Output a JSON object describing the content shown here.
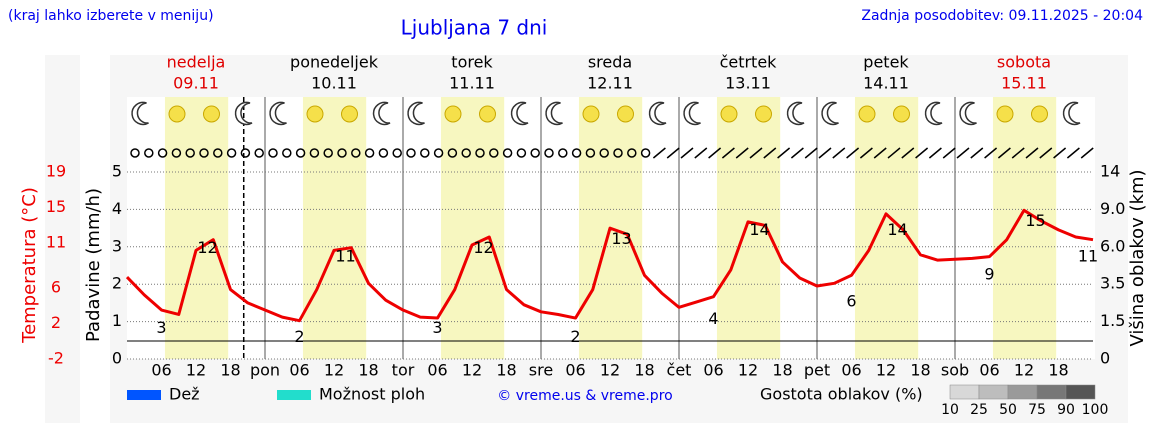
{
  "chart_data": {
    "type": "line",
    "title": "Ljubljana 7 dni",
    "subtitle": "(kraj lahko izberete v meniju)",
    "update": "Zadnja posodobitev: 09.11.2025 - 20:04",
    "days": [
      {
        "name": "nedelja",
        "date": "09.11",
        "color": "#e00000"
      },
      {
        "name": "ponedeljek",
        "date": "10.11",
        "color": "#000000"
      },
      {
        "name": "torek",
        "date": "11.11",
        "color": "#000000"
      },
      {
        "name": "sreda",
        "date": "12.11",
        "color": "#000000"
      },
      {
        "name": "četrtek",
        "date": "13.11",
        "color": "#000000"
      },
      {
        "name": "petek",
        "date": "14.11",
        "color": "#000000"
      },
      {
        "name": "sobota",
        "date": "15.11",
        "color": "#e00000"
      }
    ],
    "xlim": [
      0,
      168
    ],
    "xticks": [
      {
        "value": 6,
        "label": "06"
      },
      12,
      18,
      {
        "value": 24,
        "label": "pon"
      },
      {
        "value": 30,
        "label": "06"
      },
      {
        "value": 36,
        "label": "12"
      },
      {
        "value": 42,
        "label": "18"
      },
      {
        "value": 48,
        "label": "tor"
      },
      {
        "value": 54,
        "label": "06"
      },
      {
        "value": 60,
        "label": "12"
      },
      {
        "value": 66,
        "label": "18"
      },
      {
        "value": 72,
        "label": "sre"
      },
      {
        "value": 78,
        "label": "06"
      },
      {
        "value": 84,
        "label": "12"
      },
      {
        "value": 90,
        "label": "18"
      },
      {
        "value": 96,
        "label": "čet"
      },
      {
        "value": 102,
        "label": "06"
      },
      {
        "value": 108,
        "label": "12"
      },
      {
        "value": 114,
        "label": "18"
      },
      {
        "value": 120,
        "label": "pet"
      },
      {
        "value": 126,
        "label": "06"
      },
      {
        "value": 132,
        "label": "12"
      },
      {
        "value": 138,
        "label": "18"
      },
      {
        "value": 144,
        "label": "sob"
      },
      {
        "value": 150,
        "label": "06"
      },
      {
        "value": 156,
        "label": "12"
      },
      {
        "value": 162,
        "label": "18"
      }
    ],
    "ylabel": "Padavine (mm/h)",
    "ylim": [
      0,
      5
    ],
    "yticks": [
      0,
      1,
      2,
      3,
      4,
      5
    ],
    "grid": true,
    "temperature_axis": {
      "lim": [
        -2,
        19
      ],
      "ticks": [
        -2,
        2,
        6,
        11,
        15,
        19
      ],
      "color": "#ee0000"
    },
    "y2label": "Višina oblakov (km)",
    "y2ticks": [
      0,
      {
        "value": 1.5,
        "label": "1.5"
      },
      {
        "value": 3.5,
        "label": "3.5"
      },
      {
        "value": 6,
        "label": "6.0"
      },
      {
        "value": 9,
        "label": "9.0"
      },
      14
    ],
    "x": [
      0,
      3,
      6,
      9,
      12,
      15,
      18,
      21,
      24,
      27,
      30,
      33,
      36,
      39,
      42,
      45,
      48,
      51,
      54,
      57,
      60,
      63,
      66,
      69,
      72,
      75,
      78,
      81,
      84,
      87,
      90,
      93,
      96,
      99,
      102,
      105,
      108,
      111,
      114,
      117,
      120,
      123,
      126,
      129,
      132,
      135,
      138,
      141,
      144,
      147,
      150,
      153,
      156,
      159,
      162,
      165,
      168
    ],
    "series": [
      {
        "name": "Temperatura (°C)",
        "color": "#ee0000",
        "values": [
          7.2,
          5.2,
          3.5,
          3.0,
          10.2,
          11.4,
          5.8,
          4.3,
          3.5,
          2.7,
          2.3,
          5.8,
          10.2,
          10.5,
          6.5,
          4.6,
          3.5,
          2.7,
          2.6,
          5.8,
          10.8,
          11.7,
          5.8,
          4.1,
          3.3,
          3.0,
          2.6,
          5.8,
          12.7,
          12.0,
          7.4,
          5.4,
          3.8,
          4.4,
          5.0,
          8.0,
          13.4,
          13.0,
          8.9,
          7.1,
          6.2,
          6.5,
          7.4,
          10.2,
          14.3,
          12.5,
          9.7,
          9.1,
          9.2,
          9.3,
          9.5,
          11.4,
          14.7,
          13.5,
          12.5,
          11.7,
          11.4
        ]
      }
    ],
    "extremes": [
      {
        "x": 6,
        "value": 3
      },
      {
        "x": 14,
        "value": 12
      },
      {
        "x": 30,
        "value": 2
      },
      {
        "x": 38,
        "value": 11
      },
      {
        "x": 54,
        "value": 3
      },
      {
        "x": 62,
        "value": 12
      },
      {
        "x": 78,
        "value": 2
      },
      {
        "x": 86,
        "value": 13
      },
      {
        "x": 102,
        "value": 4
      },
      {
        "x": 110,
        "value": 14
      },
      {
        "x": 126,
        "value": 6
      },
      {
        "x": 134,
        "value": 14
      },
      {
        "x": 150,
        "value": 9
      },
      {
        "x": 158,
        "value": 15
      },
      {
        "x": 168,
        "value": 11
      }
    ],
    "legend": [
      {
        "name": "Dež",
        "color": "#0055ff"
      },
      {
        "name": "Možnost ploh",
        "color": "#22ddcc"
      }
    ],
    "credit": "© vreme.us & vreme.pro",
    "cloud_legend": {
      "title": "Gostota oblakov (%)",
      "levels": [
        10,
        25,
        50,
        75,
        90,
        100
      ],
      "colors": [
        "#d8d8d8",
        "#bdbdbd",
        "#9a9a9a",
        "#777777",
        "#555555"
      ]
    }
  }
}
